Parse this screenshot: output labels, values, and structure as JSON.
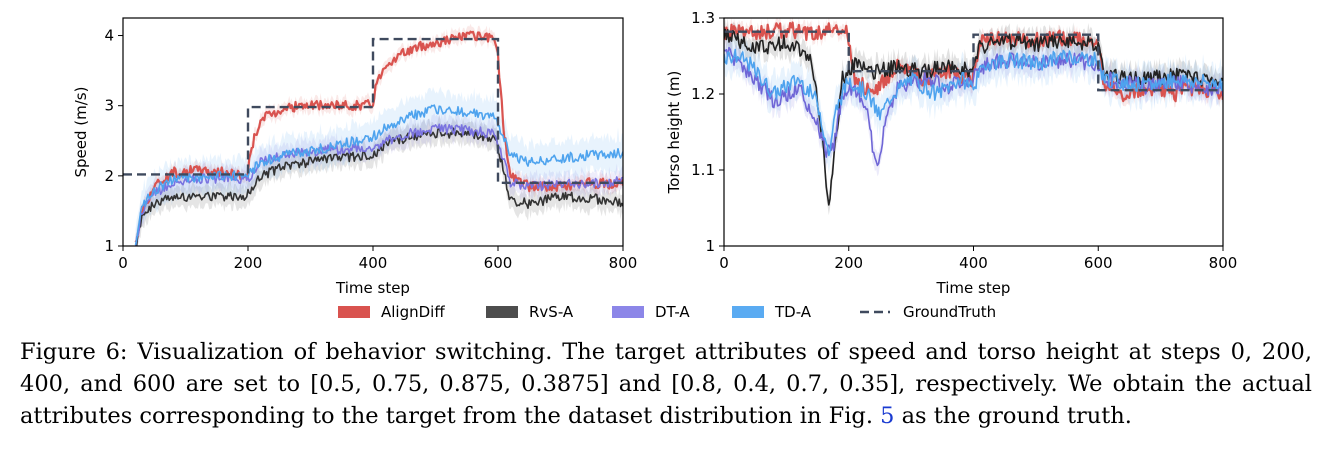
{
  "figure": {
    "caption_label": "Figure 6:",
    "caption_part1": "Visualization of behavior switching. The target attributes of speed and torso height at steps 0, 200, 400, and 600 are set to ",
    "caption_math1": "[0.5, 0.75, 0.875, 0.3875]",
    "caption_part2": " and ",
    "caption_math2": "[0.8, 0.4, 0.7, 0.35]",
    "caption_part3": ", respectively. We obtain the actual attributes corresponding to the target from the dataset distribution in Fig. ",
    "caption_ref": "5",
    "caption_part4": " as the ground truth."
  },
  "legend": {
    "items": [
      {
        "label": "AlignDiff",
        "color": "#d9534f",
        "style": "patch"
      },
      {
        "label": "RvS-A",
        "color": "#4d4d4d",
        "style": "patch"
      },
      {
        "label": "DT-A",
        "color": "#8c86e8",
        "style": "patch"
      },
      {
        "label": "TD-A",
        "color": "#5aabf2",
        "style": "patch"
      },
      {
        "label": "GroundTruth",
        "color": "#3f4a5e",
        "style": "dashed"
      }
    ]
  },
  "chart_data": [
    {
      "type": "line",
      "xlabel": "Time step",
      "ylabel": "Speed (m/s)",
      "xlim": [
        0,
        800
      ],
      "ylim": [
        1,
        4.25
      ],
      "xticks": [
        "0",
        "200",
        "400",
        "600",
        "800"
      ],
      "yticks": [
        "1",
        "2",
        "3",
        "4"
      ],
      "ground_truth": {
        "name": "GroundTruth",
        "steps": [
          [
            0,
            200,
            2.02
          ],
          [
            200,
            400,
            2.98
          ],
          [
            400,
            600,
            3.95
          ],
          [
            600,
            800,
            1.9
          ]
        ]
      },
      "series": [
        {
          "name": "AlignDiff",
          "color": "#d9534f",
          "x": [
            20,
            30,
            50,
            80,
            120,
            160,
            199,
            205,
            220,
            260,
            300,
            350,
            399,
            405,
            420,
            460,
            500,
            550,
            590,
            599,
            610,
            620,
            650,
            700,
            750,
            800
          ],
          "y": [
            1.0,
            1.5,
            1.85,
            2.05,
            2.08,
            2.05,
            2.0,
            2.4,
            2.8,
            2.98,
            3.0,
            3.0,
            3.02,
            3.3,
            3.6,
            3.8,
            3.9,
            4.0,
            3.95,
            3.8,
            2.6,
            2.0,
            1.85,
            1.85,
            1.9,
            1.88
          ]
        },
        {
          "name": "RvS-A",
          "color": "#333333",
          "x": [
            20,
            30,
            50,
            80,
            120,
            160,
            199,
            220,
            260,
            300,
            350,
            399,
            420,
            460,
            500,
            550,
            590,
            599,
            620,
            650,
            700,
            750,
            800
          ],
          "y": [
            1.0,
            1.4,
            1.6,
            1.7,
            1.72,
            1.7,
            1.72,
            2.0,
            2.15,
            2.2,
            2.25,
            2.3,
            2.45,
            2.55,
            2.6,
            2.62,
            2.55,
            2.45,
            1.65,
            1.6,
            1.7,
            1.68,
            1.62
          ]
        },
        {
          "name": "DT-A",
          "color": "#7a73e0",
          "x": [
            20,
            30,
            50,
            80,
            120,
            160,
            199,
            220,
            260,
            300,
            350,
            399,
            420,
            460,
            500,
            550,
            590,
            599,
            620,
            650,
            700,
            750,
            800
          ],
          "y": [
            1.0,
            1.5,
            1.75,
            1.9,
            1.95,
            1.97,
            1.95,
            2.2,
            2.3,
            2.35,
            2.38,
            2.4,
            2.5,
            2.6,
            2.68,
            2.65,
            2.6,
            2.5,
            1.9,
            1.85,
            1.88,
            1.9,
            1.92
          ]
        },
        {
          "name": "TD-A",
          "color": "#4ea3ee",
          "x": [
            20,
            30,
            50,
            80,
            120,
            160,
            199,
            220,
            260,
            300,
            350,
            399,
            420,
            460,
            500,
            550,
            590,
            599,
            620,
            650,
            700,
            750,
            800
          ],
          "y": [
            1.0,
            1.55,
            1.8,
            1.95,
            1.98,
            2.0,
            2.0,
            2.2,
            2.3,
            2.35,
            2.45,
            2.55,
            2.7,
            2.85,
            2.95,
            2.9,
            2.85,
            2.75,
            2.3,
            2.2,
            2.25,
            2.3,
            2.32
          ]
        }
      ]
    },
    {
      "type": "line",
      "xlabel": "Time step",
      "ylabel": "Torso height (m)",
      "xlim": [
        0,
        800
      ],
      "ylim": [
        1.0,
        1.3
      ],
      "xticks": [
        "0",
        "200",
        "400",
        "600",
        "800"
      ],
      "yticks": [
        "1",
        "1.1",
        "1.2",
        "1.3"
      ],
      "ground_truth": {
        "name": "GroundTruth",
        "steps": [
          [
            0,
            200,
            1.282
          ],
          [
            200,
            400,
            1.23
          ],
          [
            400,
            600,
            1.278
          ],
          [
            600,
            800,
            1.205
          ]
        ]
      },
      "series": [
        {
          "name": "AlignDiff",
          "color": "#d9534f",
          "x": [
            0,
            20,
            60,
            100,
            140,
            180,
            199,
            210,
            240,
            280,
            320,
            360,
            399,
            410,
            450,
            500,
            550,
            599,
            610,
            640,
            680,
            720,
            760,
            800
          ],
          "y": [
            1.28,
            1.285,
            1.28,
            1.285,
            1.28,
            1.285,
            1.28,
            1.22,
            1.2,
            1.24,
            1.22,
            1.23,
            1.22,
            1.27,
            1.275,
            1.27,
            1.275,
            1.27,
            1.21,
            1.2,
            1.21,
            1.2,
            1.21,
            1.2
          ]
        },
        {
          "name": "RvS-A",
          "color": "#222222",
          "x": [
            0,
            20,
            60,
            100,
            140,
            160,
            168,
            176,
            190,
            210,
            240,
            280,
            320,
            360,
            399,
            410,
            450,
            500,
            550,
            599,
            610,
            640,
            680,
            720,
            760,
            800
          ],
          "y": [
            1.28,
            1.27,
            1.26,
            1.27,
            1.25,
            1.12,
            1.055,
            1.12,
            1.22,
            1.24,
            1.23,
            1.235,
            1.23,
            1.235,
            1.23,
            1.26,
            1.27,
            1.265,
            1.27,
            1.265,
            1.22,
            1.225,
            1.22,
            1.225,
            1.22,
            1.215
          ]
        },
        {
          "name": "DT-A",
          "color": "#6f66d6",
          "x": [
            0,
            20,
            40,
            80,
            120,
            150,
            165,
            175,
            190,
            210,
            230,
            245,
            260,
            280,
            320,
            360,
            399,
            420,
            460,
            500,
            550,
            599,
            610,
            640,
            680,
            720,
            760,
            800
          ],
          "y": [
            1.26,
            1.24,
            1.23,
            1.19,
            1.21,
            1.16,
            1.12,
            1.13,
            1.2,
            1.21,
            1.17,
            1.1,
            1.17,
            1.21,
            1.22,
            1.21,
            1.22,
            1.24,
            1.245,
            1.24,
            1.245,
            1.24,
            1.22,
            1.215,
            1.21,
            1.215,
            1.21,
            1.205
          ]
        },
        {
          "name": "TD-A",
          "color": "#4ea3ee",
          "x": [
            0,
            20,
            40,
            80,
            120,
            150,
            168,
            180,
            200,
            230,
            250,
            270,
            300,
            340,
            380,
            399,
            420,
            460,
            500,
            550,
            599,
            610,
            640,
            680,
            720,
            760,
            800
          ],
          "y": [
            1.25,
            1.25,
            1.24,
            1.2,
            1.22,
            1.19,
            1.12,
            1.18,
            1.22,
            1.2,
            1.17,
            1.2,
            1.22,
            1.2,
            1.22,
            1.21,
            1.24,
            1.245,
            1.24,
            1.25,
            1.245,
            1.22,
            1.215,
            1.21,
            1.22,
            1.215,
            1.215
          ]
        }
      ]
    }
  ]
}
